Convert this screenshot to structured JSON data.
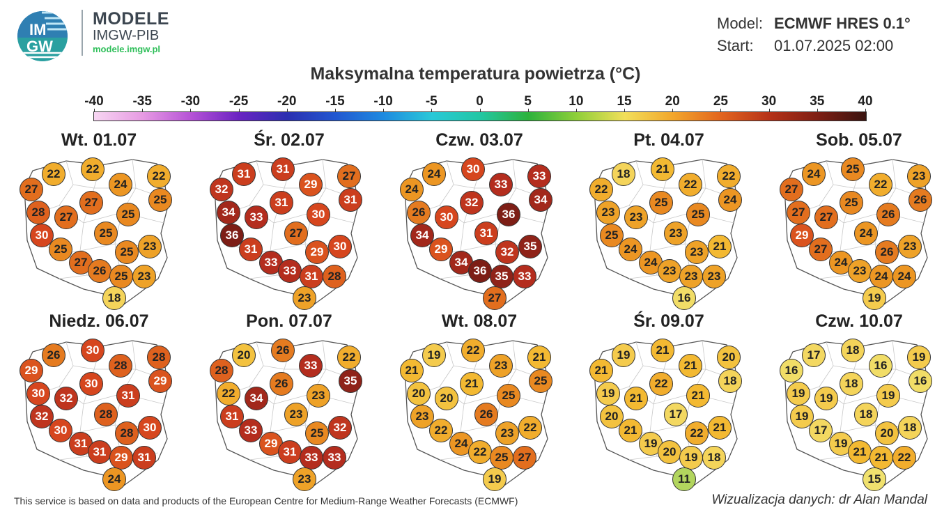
{
  "header": {
    "logo_text_top": "IM",
    "logo_text_bottom": "GW",
    "brand_title": "MODELE",
    "brand_subtitle": "IMGW-PIB",
    "brand_url": "modele.imgw.pl",
    "model_label": "Model:",
    "model_value": "ECMWF HRES 0.1°",
    "start_label": "Start:",
    "start_value": "01.07.2025 02:00"
  },
  "title": "Maksymalna temperatura powietrza (°C)",
  "colorbar": {
    "ticks": [
      "-40",
      "-35",
      "-30",
      "-25",
      "-20",
      "-15",
      "-10",
      "-5",
      "0",
      "5",
      "10",
      "15",
      "20",
      "25",
      "30",
      "35",
      "40"
    ],
    "min": -40,
    "max": 40
  },
  "maps": [
    {
      "title": "Wt. 01.07",
      "values": [
        22,
        22,
        24,
        22,
        27,
        25,
        27,
        28,
        27,
        25,
        30,
        25,
        25,
        23,
        25,
        27,
        26,
        25,
        23,
        18
      ]
    },
    {
      "title": "Śr. 02.07",
      "values": [
        31,
        31,
        29,
        27,
        32,
        31,
        31,
        34,
        33,
        30,
        36,
        31,
        27,
        30,
        29,
        33,
        33,
        31,
        28,
        23
      ]
    },
    {
      "title": "Czw. 03.07",
      "values": [
        24,
        30,
        33,
        33,
        24,
        34,
        32,
        26,
        30,
        36,
        34,
        29,
        31,
        35,
        32,
        34,
        36,
        35,
        33,
        27
      ]
    },
    {
      "title": "Pt. 04.07",
      "values": [
        18,
        21,
        22,
        22,
        22,
        24,
        25,
        23,
        23,
        25,
        25,
        24,
        23,
        21,
        23,
        24,
        23,
        23,
        23,
        16
      ]
    },
    {
      "title": "Sob. 05.07",
      "values": [
        24,
        25,
        22,
        23,
        27,
        26,
        25,
        27,
        27,
        26,
        29,
        27,
        24,
        23,
        26,
        24,
        23,
        24,
        24,
        19
      ]
    },
    {
      "title": "Niedz. 06.07",
      "values": [
        26,
        30,
        28,
        28,
        29,
        29,
        30,
        30,
        32,
        31,
        32,
        30,
        28,
        30,
        28,
        31,
        31,
        29,
        31,
        24
      ]
    },
    {
      "title": "Pon. 07.07",
      "values": [
        20,
        26,
        33,
        22,
        28,
        35,
        26,
        22,
        34,
        23,
        31,
        33,
        23,
        32,
        25,
        29,
        31,
        33,
        33,
        23
      ]
    },
    {
      "title": "Wt. 08.07",
      "values": [
        19,
        22,
        23,
        21,
        21,
        25,
        21,
        20,
        20,
        25,
        23,
        22,
        26,
        22,
        23,
        24,
        22,
        25,
        27,
        19
      ]
    },
    {
      "title": "Śr. 09.07",
      "values": [
        19,
        21,
        21,
        20,
        21,
        18,
        22,
        19,
        21,
        21,
        20,
        21,
        17,
        21,
        22,
        19,
        20,
        19,
        18,
        11
      ]
    },
    {
      "title": "Czw. 10.07",
      "values": [
        17,
        18,
        16,
        19,
        16,
        16,
        18,
        19,
        19,
        19,
        19,
        17,
        18,
        18,
        20,
        19,
        21,
        21,
        22,
        15
      ]
    }
  ],
  "footer": {
    "credit": "This service is based on data and products of the European Centre for Medium-Range Weather Forecasts (ECMWF)",
    "author": "Wizualizacja danych: dr Alan Mandal"
  }
}
